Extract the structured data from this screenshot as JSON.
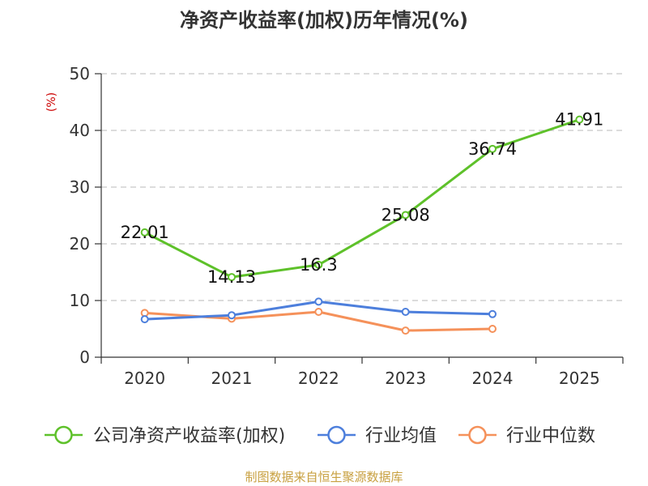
{
  "chart_data": {
    "type": "line",
    "title": "净资产收益率(加权)历年情况(%)",
    "ylabel": "(%)",
    "xlabel": "",
    "categories": [
      "2020",
      "2021",
      "2022",
      "2023",
      "2024",
      "2025"
    ],
    "ylim": [
      0,
      50
    ],
    "yticks": [
      0,
      10,
      20,
      30,
      40,
      50
    ],
    "grid": true,
    "legend_position": "bottom",
    "series": [
      {
        "name": "公司净资产收益率(加权)",
        "color": "#5ec12a",
        "values": [
          22.01,
          14.13,
          16.3,
          25.08,
          36.74,
          41.91
        ],
        "labels": [
          "22.01",
          "14.13",
          "16.3",
          "25.08",
          "36.74",
          "41.91"
        ]
      },
      {
        "name": "行业均值",
        "color": "#4d7fdc",
        "values": [
          6.7,
          7.4,
          9.8,
          8.0,
          7.6,
          null
        ]
      },
      {
        "name": "行业中位数",
        "color": "#f5915a",
        "values": [
          7.8,
          6.8,
          8.0,
          4.7,
          5.0,
          null
        ]
      }
    ],
    "source": "制图数据来自恒生聚源数据库"
  }
}
